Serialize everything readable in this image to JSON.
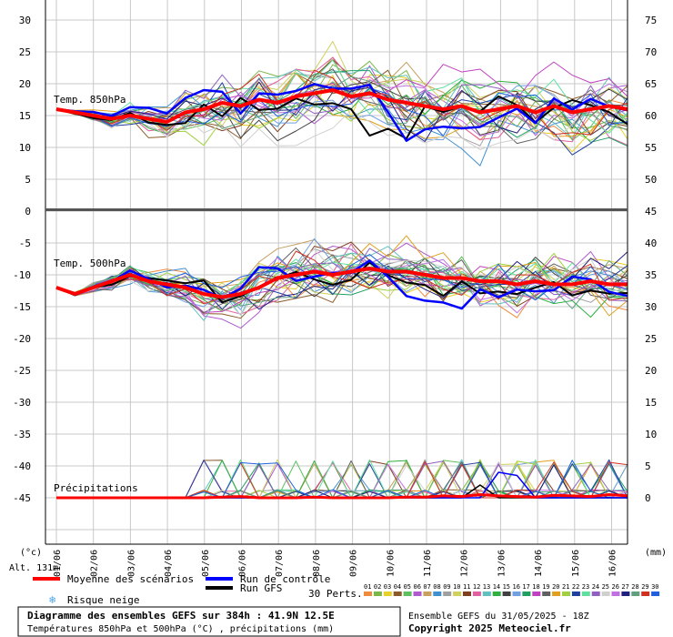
{
  "chart_data": [
    {
      "type": "line",
      "panel_label": "Temp. 850hPa",
      "left_ticks": [
        "30",
        "25",
        "20",
        "15",
        "10",
        "5"
      ],
      "right_ticks": [
        "75",
        "70",
        "65",
        "60",
        "55",
        "50"
      ],
      "ylim": [
        0,
        30
      ],
      "mean_series": [
        16,
        15.5,
        15,
        14.5,
        15,
        14.5,
        14,
        15.5,
        16,
        17,
        16.5,
        17.5,
        17,
        18,
        18.5,
        19,
        18,
        18.5,
        17.5,
        17,
        16.5,
        16,
        16.5,
        15.5,
        16,
        16.5,
        15.5,
        16.5,
        15.5,
        16,
        16.5,
        16
      ]
    },
    {
      "type": "line",
      "panel_label": "Temp. 500hPa",
      "left_ticks": [
        "0",
        "-5",
        "-10",
        "-15",
        "-20",
        "-25",
        "-30",
        "-35",
        "-40",
        "-45"
      ],
      "right_ticks": [
        "45",
        "40",
        "35",
        "30",
        "25",
        "20",
        "15",
        "10",
        "5",
        "0"
      ],
      "ylim": [
        -55,
        0
      ],
      "mean_series": [
        -12,
        -13,
        -12,
        -11,
        -10,
        -11,
        -11.5,
        -12,
        -13,
        -13.5,
        -13,
        -12,
        -10.5,
        -10,
        -9.5,
        -10,
        -9.5,
        -9,
        -9.5,
        -9.5,
        -10,
        -10.5,
        -10.5,
        -11,
        -11,
        -11.5,
        -11,
        -11.5,
        -11.5,
        -11,
        -11.5,
        -11.5
      ]
    },
    {
      "type": "bar",
      "panel_label": "Précipitations",
      "unit": "mm",
      "ylim": [
        0,
        10
      ],
      "mean_series": [
        0,
        0,
        0,
        0,
        0,
        0,
        0,
        0,
        0,
        0.1,
        0.2,
        0,
        0,
        0,
        0.1,
        0,
        0,
        0,
        0,
        0.1,
        0.1,
        0.3,
        0.2,
        0.5,
        0.3,
        0.2,
        0.1,
        0.4,
        0.3,
        0.2,
        0.5,
        0.3
      ]
    }
  ],
  "x_categories": [
    "01/06",
    "02/06",
    "03/06",
    "04/06",
    "05/06",
    "06/06",
    "07/06",
    "08/06",
    "09/06",
    "10/06",
    "11/06",
    "12/06",
    "13/06",
    "14/06",
    "15/06",
    "16/06"
  ],
  "labels": {
    "left_unit": "(°c)",
    "right_unit": "(mm)",
    "altitude": "Alt. 131m",
    "legend_mean": "Moyenne des scénarios",
    "legend_control": "Run de contrôle",
    "legend_gfs": "Run GFS",
    "legend_snow": "Risque neige",
    "perts_label": "30 Perts.",
    "perts_numbers": [
      "01",
      "02",
      "03",
      "04",
      "05",
      "06",
      "07",
      "08",
      "09",
      "10",
      "11",
      "12",
      "13",
      "14",
      "15",
      "16",
      "17",
      "18",
      "19",
      "20",
      "21",
      "22",
      "23",
      "24",
      "25",
      "26",
      "27",
      "28",
      "29",
      "30"
    ],
    "title_line1": "Diagramme des ensembles GEFS sur 384h : 41.9N 12.5E",
    "title_line2": "Températures 850hPa et 500hPa (°C) , précipitations (mm)",
    "run_info": "Ensemble GEFS du 31/05/2025 - 18Z",
    "copyright": "Copyright 2025 Meteociel.fr"
  },
  "colors": {
    "mean": "#ff0000",
    "control": "#0000ff",
    "gfs": "#000000",
    "grid": "#c8c8c8",
    "snow": "#4aa6e8",
    "perts": [
      "#f08a3c",
      "#7ab648",
      "#e8d02a",
      "#8b5a2b",
      "#5fbf5f",
      "#b05ad0",
      "#c8a060",
      "#4090d0",
      "#a0a0a0",
      "#d0d060",
      "#804020",
      "#e060a0",
      "#60c0c0",
      "#30b040",
      "#404040",
      "#70a0e0",
      "#20a060",
      "#c040c0",
      "#606060",
      "#e0a020",
      "#a0d040",
      "#2040a0",
      "#60e0a0",
      "#9060c0",
      "#d0d0d0",
      "#c070e0",
      "#202080",
      "#60a080",
      "#d03020",
      "#2060e0"
    ]
  }
}
